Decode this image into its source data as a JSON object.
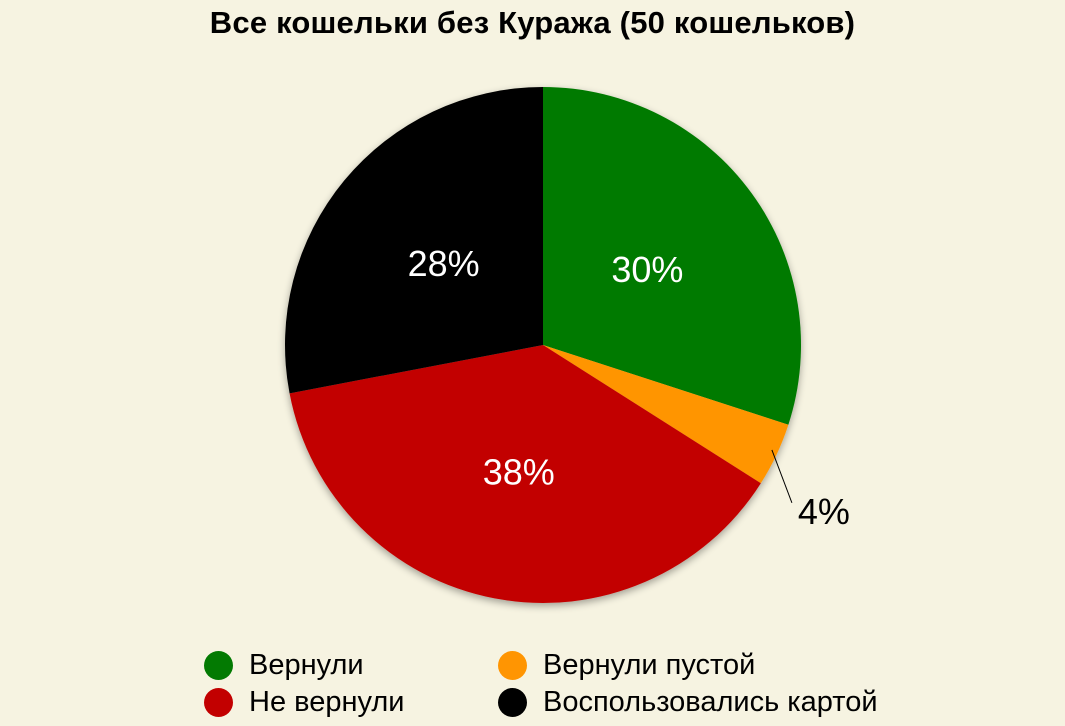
{
  "chart_data": {
    "type": "pie",
    "title": "Все кошельки без Куража (50 кошельков)",
    "slices": [
      {
        "name": "Вернули",
        "value": 30,
        "label": "30%",
        "color": "#037a02",
        "label_color": "#ffffff"
      },
      {
        "name": "Вернули пустой",
        "value": 4,
        "label": "4%",
        "color": "#ff9502",
        "label_color": "#000000"
      },
      {
        "name": "Не вернули",
        "value": 38,
        "label": "38%",
        "color": "#c20000",
        "label_color": "#ffffff"
      },
      {
        "name": "Воспользовались картой",
        "value": 28,
        "label": "28%",
        "color": "#000000",
        "label_color": "#ffffff"
      }
    ],
    "legend": {
      "placement": "bottom",
      "items": [
        {
          "name": "Вернули",
          "color": "#037a02"
        },
        {
          "name": "Вернули пустой",
          "color": "#ff9502"
        },
        {
          "name": "Не вернули",
          "color": "#c20000"
        },
        {
          "name": "Воспользовались картой",
          "color": "#000000"
        }
      ]
    }
  }
}
